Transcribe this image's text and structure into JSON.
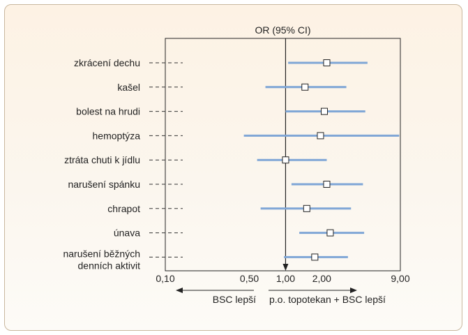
{
  "chart_data": {
    "type": "forest",
    "title": "OR (95% CI)",
    "x_scale": "log",
    "xlim": [
      0.1,
      9.0
    ],
    "x_ticks": [
      {
        "value": 0.1,
        "label": "0,10"
      },
      {
        "value": 0.5,
        "label": "0,50"
      },
      {
        "value": 1.0,
        "label": "1,00"
      },
      {
        "value": 2.0,
        "label": "2,00"
      },
      {
        "value": 9.0,
        "label": "9,00"
      }
    ],
    "reference_line": 1.0,
    "rows": [
      {
        "label": [
          "zkrácení dechu"
        ],
        "or": 2.2,
        "lo": 1.05,
        "hi": 4.8
      },
      {
        "label": [
          "kašel"
        ],
        "or": 1.45,
        "lo": 0.68,
        "hi": 3.2
      },
      {
        "label": [
          "bolest na hrudi"
        ],
        "or": 2.1,
        "lo": 1.0,
        "hi": 4.6
      },
      {
        "label": [
          "hemoptýza"
        ],
        "or": 1.95,
        "lo": 0.45,
        "hi": 8.8
      },
      {
        "label": [
          "ztráta chuti k jídlu"
        ],
        "or": 1.0,
        "lo": 0.58,
        "hi": 2.2
      },
      {
        "label": [
          "narušení spánku"
        ],
        "or": 2.2,
        "lo": 1.12,
        "hi": 4.4
      },
      {
        "label": [
          "chrapot"
        ],
        "or": 1.5,
        "lo": 0.62,
        "hi": 3.5
      },
      {
        "label": [
          "únava"
        ],
        "or": 2.35,
        "lo": 1.3,
        "hi": 4.5
      },
      {
        "label": [
          "narušení běžných",
          "denních aktivit"
        ],
        "or": 1.75,
        "lo": 0.97,
        "hi": 3.3
      }
    ],
    "direction_left": "BSC lepší",
    "direction_right": "p.o. topotekan + BSC lepší",
    "colors": {
      "ci_line": "#7fa6d6",
      "marker_fill": "#ffffff",
      "marker_stroke": "#222222",
      "axis": "#222222",
      "dashes": "#333333",
      "card_border": "#c9b79e"
    }
  }
}
